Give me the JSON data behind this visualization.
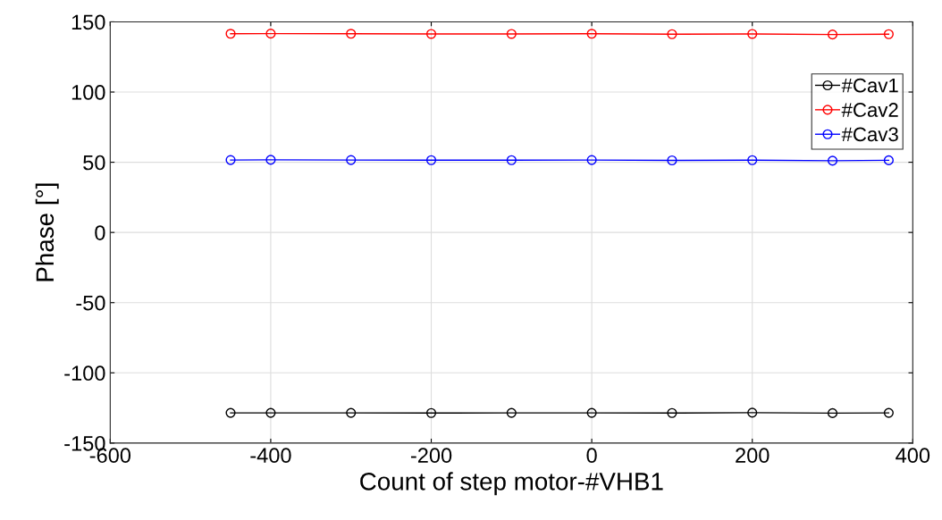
{
  "chart_data": {
    "type": "line",
    "xlabel": "Count of step motor-#VHB1",
    "ylabel": "Phase [°]",
    "x": [
      -450,
      -400,
      -300,
      -200,
      -100,
      0,
      100,
      200,
      300,
      370
    ],
    "series": [
      {
        "name": "#Cav1",
        "color": "#000000",
        "values": [
          -128.5,
          -128.5,
          -128.5,
          -128.6,
          -128.5,
          -128.5,
          -128.6,
          -128.4,
          -128.7,
          -128.5
        ]
      },
      {
        "name": "#Cav2",
        "color": "#ff0000",
        "values": [
          141.5,
          141.6,
          141.5,
          141.4,
          141.4,
          141.5,
          141.2,
          141.4,
          141.0,
          141.2
        ]
      },
      {
        "name": "#Cav3",
        "color": "#0000ff",
        "values": [
          51.6,
          51.7,
          51.6,
          51.5,
          51.5,
          51.6,
          51.3,
          51.5,
          51.1,
          51.4
        ]
      }
    ],
    "xlim": [
      -600,
      400
    ],
    "xticks": [
      -600,
      -400,
      -200,
      0,
      200,
      400
    ],
    "ylim": [
      -150,
      150
    ],
    "yticks": [
      -150,
      -100,
      -50,
      0,
      50,
      100,
      150
    ],
    "grid": true,
    "legend": "top right",
    "marker": "circle",
    "line_style": "solid"
  }
}
